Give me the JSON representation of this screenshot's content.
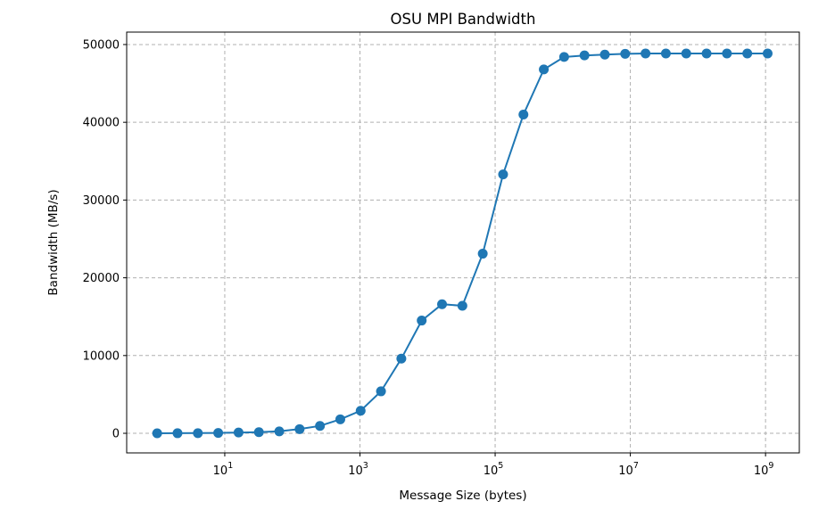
{
  "chart_data": {
    "type": "line",
    "title": "OSU MPI Bandwidth",
    "xlabel": "Message Size (bytes)",
    "ylabel": "Bandwidth (MB/s)",
    "xscale": "log",
    "xlim": [
      0.354,
      3160000000
    ],
    "ylim": [
      -2520,
      51600
    ],
    "grid": true,
    "x_ticks": [
      {
        "value": 10,
        "base": "10",
        "exp": "1"
      },
      {
        "value": 1000,
        "base": "10",
        "exp": "3"
      },
      {
        "value": 100000,
        "base": "10",
        "exp": "5"
      },
      {
        "value": 10000000,
        "base": "10",
        "exp": "7"
      },
      {
        "value": 1000000000,
        "base": "10",
        "exp": "9"
      }
    ],
    "y_ticks": [
      0,
      10000,
      20000,
      30000,
      40000,
      50000
    ],
    "y_tick_labels": [
      "0",
      "10000",
      "20000",
      "30000",
      "40000",
      "50000"
    ],
    "series_color": "#1f77b4",
    "marker": "circle",
    "x": [
      1,
      2,
      4,
      8,
      16,
      32,
      64,
      128,
      256,
      512,
      1024,
      2048,
      4096,
      8192,
      16384,
      32768,
      65536,
      131072,
      262144,
      524288,
      1048576,
      2097152,
      4194304,
      8388608,
      16777216,
      33554432,
      67108864,
      134217728,
      268435456,
      536870912,
      1073741824
    ],
    "y": [
      5,
      10,
      20,
      50,
      100,
      150,
      250,
      540,
      950,
      1800,
      2900,
      5400,
      9600,
      14500,
      16600,
      16400,
      23100,
      33300,
      41000,
      46800,
      48400,
      48600,
      48700,
      48800,
      48850,
      48850,
      48850,
      48850,
      48850,
      48850,
      48850
    ]
  }
}
